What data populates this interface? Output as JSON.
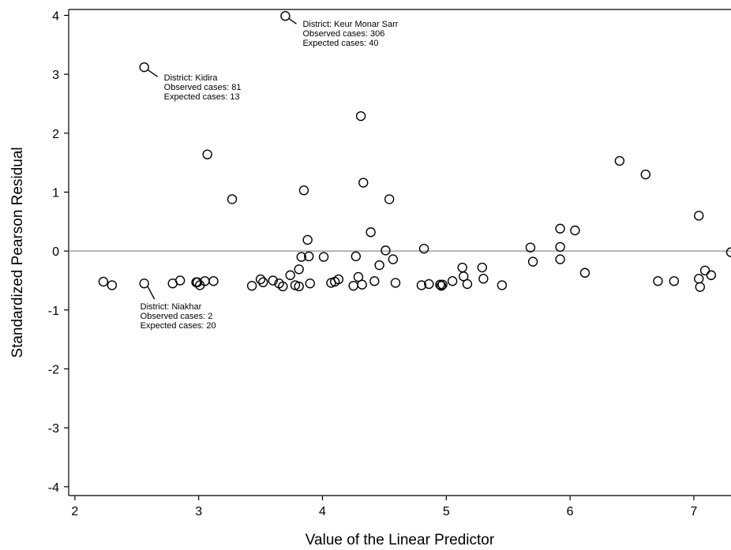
{
  "chart_data": {
    "type": "scatter",
    "title": "",
    "xlabel": "Value of the Linear Predictor",
    "ylabel": "Standardized Pearson Residual",
    "xlim": [
      1.95,
      7.3
    ],
    "ylim": [
      -4.15,
      4.1
    ],
    "x_ticks": [
      2,
      3,
      4,
      5,
      6,
      7
    ],
    "y_ticks": [
      4,
      3,
      2,
      1,
      0,
      -1,
      -2,
      -3,
      -4
    ],
    "x_tick_labels": [
      "2",
      "3",
      "4",
      "5",
      "6",
      "7"
    ],
    "y_tick_labels": [
      "4",
      "3",
      "2",
      "1",
      "0",
      "-1",
      "-2",
      "-3",
      "-4"
    ],
    "reference_line_y": 0,
    "grid": false,
    "series": [
      {
        "marker": "hollow-circle",
        "color": "#000000",
        "points": [
          {
            "x": 2.23,
            "y": -0.52
          },
          {
            "x": 2.3,
            "y": -0.58
          },
          {
            "x": 2.56,
            "y": -0.55
          },
          {
            "x": 2.56,
            "y": 3.12
          },
          {
            "x": 2.79,
            "y": -0.55
          },
          {
            "x": 2.85,
            "y": -0.5
          },
          {
            "x": 2.98,
            "y": -0.53
          },
          {
            "x": 2.99,
            "y": -0.53
          },
          {
            "x": 3.01,
            "y": -0.58
          },
          {
            "x": 3.05,
            "y": -0.51
          },
          {
            "x": 3.07,
            "y": 1.64
          },
          {
            "x": 3.12,
            "y": -0.51
          },
          {
            "x": 3.27,
            "y": 0.88
          },
          {
            "x": 3.43,
            "y": -0.59
          },
          {
            "x": 3.5,
            "y": -0.48
          },
          {
            "x": 3.52,
            "y": -0.53
          },
          {
            "x": 3.6,
            "y": -0.5
          },
          {
            "x": 3.65,
            "y": -0.55
          },
          {
            "x": 3.68,
            "y": -0.6
          },
          {
            "x": 3.7,
            "y": 3.99
          },
          {
            "x": 3.74,
            "y": -0.41
          },
          {
            "x": 3.78,
            "y": -0.58
          },
          {
            "x": 3.81,
            "y": -0.6
          },
          {
            "x": 3.81,
            "y": -0.31
          },
          {
            "x": 3.83,
            "y": -0.1
          },
          {
            "x": 3.85,
            "y": 1.03
          },
          {
            "x": 3.88,
            "y": 0.19
          },
          {
            "x": 3.89,
            "y": -0.09
          },
          {
            "x": 3.9,
            "y": -0.55
          },
          {
            "x": 4.01,
            "y": -0.1
          },
          {
            "x": 4.07,
            "y": -0.54
          },
          {
            "x": 4.1,
            "y": -0.52
          },
          {
            "x": 4.13,
            "y": -0.48
          },
          {
            "x": 4.25,
            "y": -0.59
          },
          {
            "x": 4.27,
            "y": -0.09
          },
          {
            "x": 4.29,
            "y": -0.44
          },
          {
            "x": 4.31,
            "y": 2.29
          },
          {
            "x": 4.32,
            "y": -0.57
          },
          {
            "x": 4.33,
            "y": 1.16
          },
          {
            "x": 4.39,
            "y": 0.32
          },
          {
            "x": 4.42,
            "y": -0.51
          },
          {
            "x": 4.46,
            "y": -0.24
          },
          {
            "x": 4.51,
            "y": 0.01
          },
          {
            "x": 4.54,
            "y": 0.88
          },
          {
            "x": 4.57,
            "y": -0.14
          },
          {
            "x": 4.59,
            "y": -0.54
          },
          {
            "x": 4.8,
            "y": -0.58
          },
          {
            "x": 4.82,
            "y": 0.04
          },
          {
            "x": 4.86,
            "y": -0.56
          },
          {
            "x": 4.95,
            "y": -0.57
          },
          {
            "x": 4.96,
            "y": -0.59
          },
          {
            "x": 4.97,
            "y": -0.57
          },
          {
            "x": 5.05,
            "y": -0.51
          },
          {
            "x": 5.13,
            "y": -0.28
          },
          {
            "x": 5.14,
            "y": -0.43
          },
          {
            "x": 5.17,
            "y": -0.56
          },
          {
            "x": 5.29,
            "y": -0.28
          },
          {
            "x": 5.3,
            "y": -0.47
          },
          {
            "x": 5.45,
            "y": -0.58
          },
          {
            "x": 5.68,
            "y": 0.06
          },
          {
            "x": 5.7,
            "y": -0.18
          },
          {
            "x": 5.92,
            "y": 0.38
          },
          {
            "x": 5.92,
            "y": 0.07
          },
          {
            "x": 5.92,
            "y": -0.14
          },
          {
            "x": 6.04,
            "y": 0.35
          },
          {
            "x": 6.12,
            "y": -0.37
          },
          {
            "x": 6.4,
            "y": 1.53
          },
          {
            "x": 6.61,
            "y": 1.3
          },
          {
            "x": 6.71,
            "y": -0.51
          },
          {
            "x": 6.84,
            "y": -0.51
          },
          {
            "x": 7.04,
            "y": 0.6
          },
          {
            "x": 7.04,
            "y": -0.47
          },
          {
            "x": 7.05,
            "y": -0.61
          },
          {
            "x": 7.09,
            "y": -0.33
          },
          {
            "x": 7.14,
            "y": -0.41
          },
          {
            "x": 7.3,
            "y": -0.02
          }
        ]
      }
    ],
    "annotations": [
      {
        "lines": [
          "District: Keur Monar Sarr",
          "Observed cases: 306",
          "Expected cases: 40"
        ],
        "point": {
          "x": 3.7,
          "y": 3.99
        }
      },
      {
        "lines": [
          "District: Kidira",
          "Observed cases: 81",
          "Expected cases: 13"
        ],
        "point": {
          "x": 2.56,
          "y": 3.12
        }
      },
      {
        "lines": [
          "District: Niakhar",
          "Observed cases: 2",
          "Expected cases: 20"
        ],
        "point": {
          "x": 2.56,
          "y": -0.55
        }
      }
    ]
  }
}
